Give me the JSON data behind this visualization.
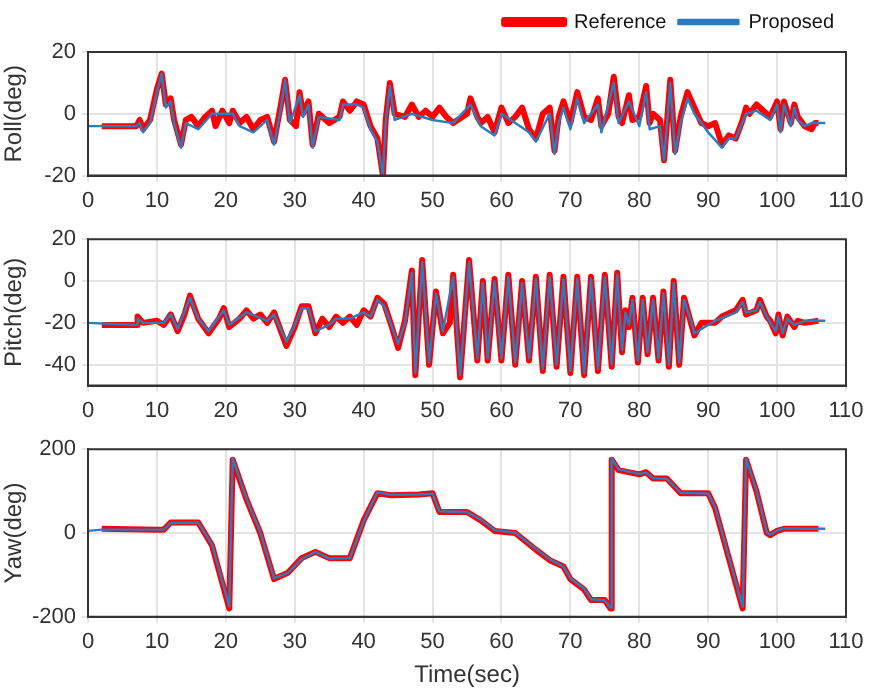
{
  "chart_data": [
    {
      "type": "line",
      "ylabel": "Roll(deg)",
      "xlim": [
        0,
        110
      ],
      "xticks": [
        0,
        10,
        20,
        30,
        40,
        50,
        60,
        70,
        80,
        90,
        100,
        110
      ],
      "ylim": [
        -20,
        20
      ],
      "yticks": [
        -20,
        0,
        20
      ],
      "grid": true,
      "legend": "top right",
      "series": [
        {
          "name": "Reference",
          "color": "#ff0000",
          "x": [
            2,
            7,
            7.5,
            8,
            9,
            10,
            10.7,
            11.3,
            12,
            12.5,
            13.5,
            14.2,
            15,
            16,
            17,
            18,
            18.5,
            19.5,
            20.5,
            21,
            22,
            23,
            24,
            25,
            26,
            27,
            28,
            28.6,
            29.3,
            30.2,
            30.7,
            31.2,
            32,
            32.6,
            33.5,
            35,
            36.5,
            37,
            38,
            39,
            40,
            41,
            42,
            42.8,
            43.2,
            43.8,
            44.5,
            46,
            47,
            48,
            49,
            50,
            51,
            52,
            53,
            55,
            55.5,
            56.5,
            57,
            58,
            59,
            60,
            61,
            62,
            63,
            64,
            65,
            66,
            67,
            67.7,
            68.3,
            69,
            70,
            71,
            72,
            73,
            74,
            74.5,
            75.5,
            76.3,
            77,
            77.5,
            78.5,
            79,
            80,
            81,
            81.5,
            82,
            83,
            83.6,
            84.5,
            85.2,
            86,
            87,
            88,
            89,
            90,
            91,
            92,
            93,
            94,
            95,
            95.5,
            96,
            97,
            98,
            99,
            100,
            100.5,
            101,
            102,
            102.5,
            103,
            104,
            105,
            105.5,
            106
          ],
          "values": [
            -4,
            -4,
            -2,
            -5,
            -2,
            8,
            13,
            3,
            5,
            -2,
            -10,
            -2,
            -1,
            -4,
            -1,
            1,
            -4,
            1,
            -3,
            1,
            -3,
            -1,
            -5,
            -2,
            -1,
            -9,
            3,
            11,
            -2,
            -4,
            7,
            0,
            4,
            -10,
            0,
            -3,
            -1,
            4,
            1,
            4,
            3,
            -4,
            -8,
            -20,
            -2,
            10,
            0,
            -1,
            3,
            -1,
            1,
            -1,
            2,
            -1,
            -3,
            0,
            5,
            -1,
            -3,
            -1,
            -6,
            2,
            -3,
            -1,
            2,
            -5,
            -8,
            0,
            2,
            -12,
            -1,
            4,
            -3,
            7,
            -1,
            -2,
            5,
            -4,
            0,
            12,
            -1,
            -3,
            6,
            -2,
            -1,
            9,
            -3,
            0,
            -2,
            -15,
            11,
            -12,
            -1,
            7,
            2,
            -3,
            -4,
            -3,
            -10,
            -7,
            -8,
            -2,
            2,
            0,
            3,
            1,
            -1,
            4,
            -5,
            4,
            -3,
            3,
            -1,
            -4,
            -5,
            -3,
            -3
          ]
        },
        {
          "name": "Proposed",
          "color": "#2b7bc0",
          "x": [
            0,
            7,
            7.5,
            8,
            9,
            10,
            10.7,
            11.3,
            12,
            12.5,
            13.5,
            14.2,
            16,
            18,
            19.5,
            21,
            22,
            24,
            26,
            27,
            28,
            28.6,
            29.3,
            30.7,
            31.2,
            32,
            32.6,
            33.5,
            36.5,
            37,
            39,
            40,
            41,
            42,
            42.8,
            43.2,
            43.8,
            44.5,
            47,
            50,
            53,
            55.5,
            57,
            59,
            60,
            62,
            64,
            65,
            67,
            67.7,
            68.3,
            69,
            70,
            71,
            72,
            74,
            74.5,
            76.3,
            77,
            78.5,
            80,
            81,
            81.5,
            83,
            83.6,
            84.5,
            85.2,
            86,
            87,
            88,
            90,
            92,
            93,
            94,
            95.5,
            97,
            99,
            100,
            100.5,
            101,
            102,
            102.5,
            103,
            104,
            105,
            107
          ],
          "values": [
            -4,
            -4,
            -3,
            -6,
            -3,
            7,
            13,
            2,
            4,
            -3,
            -11,
            -3,
            -5,
            0,
            0,
            0,
            -4,
            -6,
            -2,
            -10,
            2,
            11,
            -3,
            6,
            -1,
            3,
            -11,
            -1,
            -2,
            3,
            3,
            2,
            -5,
            -9,
            -20,
            -3,
            9,
            -2,
            0,
            -2,
            -3,
            3,
            -4,
            -7,
            0,
            -3,
            -6,
            -9,
            0,
            -13,
            -3,
            2,
            -5,
            5,
            -3,
            3,
            -6,
            10,
            -3,
            4,
            -4,
            7,
            -5,
            -4,
            -15,
            10,
            -13,
            -3,
            5,
            0,
            -6,
            -11,
            -8,
            -8,
            0,
            1,
            -2,
            3,
            -6,
            3,
            -4,
            2,
            -2,
            -4,
            -3,
            -3
          ]
        }
      ]
    },
    {
      "type": "line",
      "ylabel": "Pitch(deg)",
      "xlim": [
        0,
        110
      ],
      "xticks": [
        0,
        10,
        20,
        30,
        40,
        50,
        60,
        70,
        80,
        90,
        100,
        110
      ],
      "ylim": [
        -50,
        20
      ],
      "yticks": [
        -40,
        -20,
        0,
        20
      ],
      "grid": true,
      "series": [
        {
          "color": "#ff0000",
          "x": [
            2,
            7,
            7.2,
            8,
            10,
            11,
            12,
            13,
            14,
            14.8,
            16,
            17.5,
            19,
            19.7,
            20.5,
            22,
            23,
            24,
            25,
            26,
            27,
            28,
            28.8,
            30,
            31,
            32,
            33,
            34,
            35,
            36,
            37,
            38,
            39,
            40,
            41,
            42,
            43,
            44,
            45,
            46,
            47,
            47.5,
            48.5,
            49.5,
            50.5,
            51.5,
            52.5,
            53,
            54,
            55.3,
            56.5,
            57.3,
            58,
            59,
            60,
            61,
            62,
            63,
            64,
            65,
            66,
            67,
            68,
            69,
            70,
            71,
            72,
            73,
            74,
            75,
            76,
            76.8,
            77.5,
            78,
            78.5,
            79,
            79.8,
            80.5,
            81.2,
            82,
            82.8,
            83.5,
            84.3,
            85,
            85.8,
            86.5,
            87.5,
            88,
            89,
            91,
            92,
            94,
            95,
            95.5,
            97,
            97.5,
            98.5,
            99,
            99.8,
            100.2,
            100.8,
            101.5,
            102.5,
            103,
            104,
            106
          ],
          "values": [
            -21,
            -21,
            -17,
            -20,
            -19,
            -21,
            -16,
            -24,
            -16,
            -7,
            -18,
            -25,
            -18,
            -13,
            -22,
            -18,
            -14,
            -18,
            -16,
            -20,
            -15,
            -24,
            -31,
            -22,
            -12,
            -12,
            -25,
            -18,
            -22,
            -17,
            -20,
            -17,
            -21,
            -14,
            -17,
            -8,
            -11,
            -21,
            -32,
            -19,
            5,
            -45,
            10,
            -40,
            -5,
            -25,
            -20,
            3,
            -46,
            10,
            -38,
            0,
            -38,
            1,
            -38,
            3,
            -40,
            0,
            -38,
            2,
            -43,
            3,
            -41,
            2,
            -44,
            2,
            -45,
            2,
            -43,
            3,
            -41,
            4,
            -34,
            -14,
            -22,
            -8,
            -39,
            -8,
            -35,
            -8,
            -38,
            -5,
            -41,
            0,
            -40,
            -8,
            -20,
            -26,
            -20,
            -20,
            -17,
            -14,
            -9,
            -16,
            -14,
            -9,
            -17,
            -19,
            -25,
            -16,
            -26,
            -17,
            -22,
            -19,
            -20,
            -19
          ]
        },
        {
          "color": "#2b7bc0",
          "x": [
            0,
            7,
            7.2,
            8,
            11,
            12,
            13,
            14.8,
            16,
            17.5,
            19.7,
            20.5,
            23,
            26,
            27,
            28.8,
            30,
            31,
            32,
            33,
            35,
            36,
            38,
            40,
            41,
            42,
            43,
            45,
            46,
            47,
            47.5,
            48.5,
            49.5,
            50.5,
            51.5,
            53,
            54,
            55.3,
            56.5,
            57.3,
            58,
            59,
            60,
            61,
            62,
            63,
            64,
            65,
            66,
            67,
            68,
            69,
            70,
            71,
            72,
            73,
            74,
            75,
            76,
            76.8,
            77.5,
            78,
            78.5,
            79,
            79.8,
            80.5,
            81.2,
            82,
            82.8,
            83.5,
            84.3,
            85,
            85.8,
            86.5,
            87.5,
            88,
            91,
            94,
            95,
            95.5,
            97,
            97.5,
            98.5,
            99.8,
            100.2,
            100.8,
            101.5,
            102.5,
            104,
            107
          ],
          "values": [
            -20,
            -21,
            -18,
            -20,
            -20,
            -16,
            -23,
            -8,
            -18,
            -24,
            -14,
            -21,
            -15,
            -19,
            -16,
            -29,
            -21,
            -13,
            -13,
            -24,
            -21,
            -18,
            -18,
            -15,
            -17,
            -9,
            -12,
            -30,
            -20,
            4,
            -44,
            9,
            -39,
            -6,
            -24,
            2,
            -45,
            9,
            -37,
            -1,
            -37,
            0,
            -37,
            2,
            -39,
            -1,
            -37,
            1,
            -42,
            2,
            -40,
            1,
            -43,
            1,
            -44,
            1,
            -42,
            2,
            -40,
            3,
            -33,
            -15,
            -21,
            -9,
            -38,
            -9,
            -34,
            -9,
            -37,
            -6,
            -40,
            -1,
            -39,
            -9,
            -19,
            -25,
            -19,
            -15,
            -10,
            -15,
            -14,
            -10,
            -17,
            -24,
            -17,
            -25,
            -18,
            -21,
            -19,
            -19
          ]
        }
      ]
    },
    {
      "type": "line",
      "ylabel": "Yaw(deg)",
      "xlabel": "Time(sec)",
      "xlim": [
        0,
        110
      ],
      "xticks": [
        0,
        10,
        20,
        30,
        40,
        50,
        60,
        70,
        80,
        90,
        100,
        110
      ],
      "ylim": [
        -200,
        200
      ],
      "yticks": [
        -200,
        0,
        200
      ],
      "grid": true,
      "series": [
        {
          "color": "#ff0000",
          "x": [
            2,
            10,
            11,
            12,
            16,
            18,
            20.5,
            21,
            23,
            25,
            27,
            29,
            31,
            33,
            35,
            38,
            40,
            42,
            44,
            48,
            50,
            51,
            55,
            57,
            59,
            62,
            65,
            67,
            69,
            70,
            72,
            73,
            75,
            75.8,
            76,
            77,
            80,
            81,
            82,
            84,
            86,
            90,
            91,
            93,
            95,
            95.5,
            97,
            98.5,
            99,
            100,
            101,
            106
          ],
          "values": [
            10,
            8,
            8,
            25,
            25,
            -30,
            -180,
            175,
            80,
            0,
            -110,
            -95,
            -60,
            -45,
            -60,
            -60,
            30,
            95,
            90,
            92,
            95,
            50,
            50,
            30,
            5,
            0,
            -40,
            -65,
            -80,
            -110,
            -135,
            -160,
            -160,
            -180,
            175,
            150,
            140,
            145,
            130,
            130,
            95,
            95,
            60,
            -60,
            -180,
            175,
            100,
            0,
            -5,
            5,
            10,
            10
          ]
        },
        {
          "color": "#2b7bc0",
          "x": [
            0,
            2,
            10,
            11,
            12,
            16,
            18,
            20.5,
            21,
            23,
            25,
            27,
            29,
            31,
            33,
            35,
            38,
            40,
            42,
            44,
            48,
            50,
            51,
            55,
            57,
            59,
            62,
            65,
            67,
            69,
            70,
            72,
            73,
            75,
            75.8,
            76,
            77,
            80,
            81,
            82,
            84,
            86,
            90,
            91,
            93,
            95,
            95.5,
            97,
            98.5,
            99,
            100,
            101,
            107
          ],
          "values": [
            5,
            8,
            8,
            8,
            24,
            25,
            -28,
            -175,
            178,
            82,
            2,
            -108,
            -95,
            -62,
            -45,
            -61,
            -60,
            28,
            97,
            91,
            92,
            94,
            52,
            50,
            32,
            7,
            1,
            -38,
            -63,
            -80,
            -108,
            -133,
            -158,
            -161,
            -178,
            178,
            152,
            141,
            144,
            131,
            129,
            96,
            94,
            62,
            -58,
            -176,
            178,
            102,
            2,
            -4,
            6,
            11,
            10
          ]
        }
      ]
    }
  ]
}
